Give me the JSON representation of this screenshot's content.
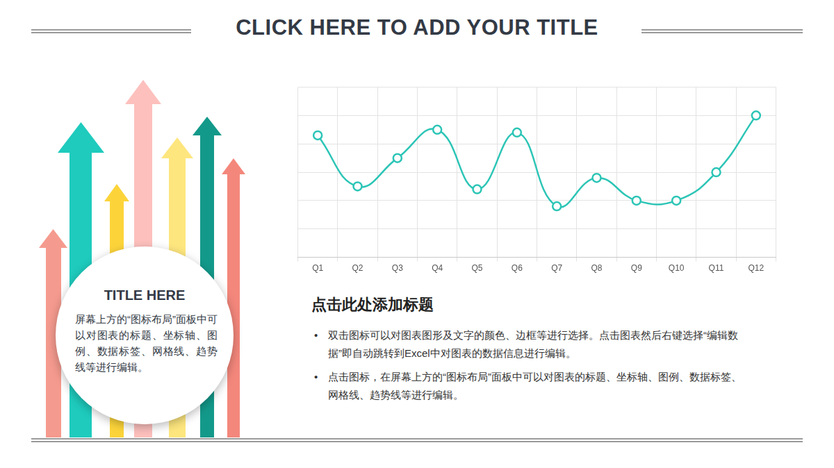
{
  "header": {
    "title": "CLICK HERE TO ADD YOUR TITLE"
  },
  "sidebar": {
    "title": "TITLE HERE",
    "text": "屏幕上方的“图标布局”面板中可以对图表的标题、坐标轴、图例、数据标签、网格线、趋势线等进行编辑。"
  },
  "chart_data": {
    "type": "line",
    "categories": [
      "Q1",
      "Q2",
      "Q3",
      "Q4",
      "Q5",
      "Q6",
      "Q7",
      "Q8",
      "Q9",
      "Q10",
      "Q11",
      "Q12"
    ],
    "values": [
      4.3,
      2.5,
      3.5,
      4.5,
      2.4,
      4.4,
      1.8,
      2.8,
      2.0,
      2.0,
      3.0,
      5.0
    ],
    "color": "#2cc5b6",
    "marker": "circle",
    "line_style": "smooth",
    "ylim": [
      0,
      6
    ],
    "yticks": [
      0,
      1,
      2,
      3,
      4,
      5,
      6
    ],
    "grid": true,
    "tick_labels": "x"
  },
  "text": {
    "heading": "点击此处添加标题",
    "bullets": [
      "双击图标可以对图表图形及文字的颜色、边框等进行选择。点击图表然后右键选择“编辑数据”即自动跳转到Excel中对图表的数据信息进行编辑。",
      "点击图标，在屏幕上方的“图标布局”面板中可以对图表的标题、坐标轴、图例、数据标签、网格线、趋势线等进行编辑。"
    ]
  }
}
